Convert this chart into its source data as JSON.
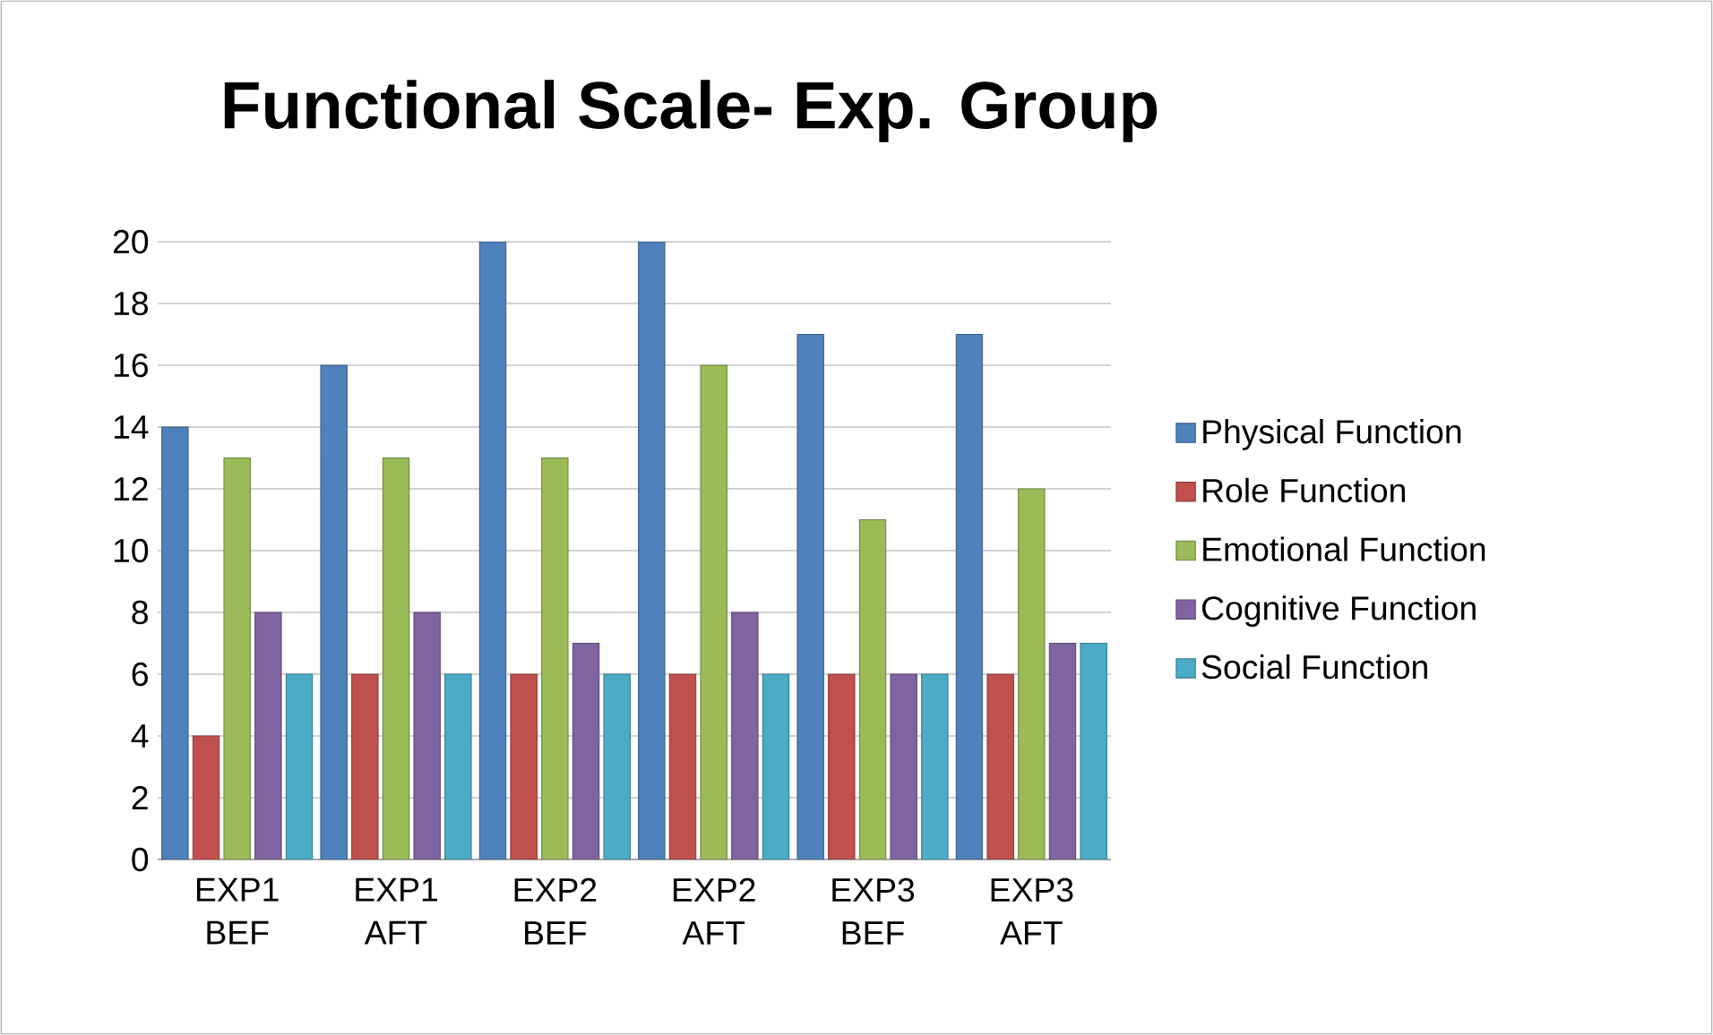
{
  "chart_data": {
    "type": "bar",
    "title": "Functional Scale- Exp. Group",
    "categories": [
      "EXP1 BEF",
      "EXP1 AFT",
      "EXP2 BEF",
      "EXP2 AFT",
      "EXP3 BEF",
      "EXP3 AFT"
    ],
    "series": [
      {
        "name": "Physical Function",
        "color": "#4f81bd",
        "values": [
          14,
          16,
          20,
          20,
          17,
          17
        ]
      },
      {
        "name": "Role Function",
        "color": "#c0504d",
        "values": [
          4,
          6,
          6,
          6,
          6,
          6
        ]
      },
      {
        "name": "Emotional Function",
        "color": "#9bbb59",
        "values": [
          13,
          13,
          13,
          16,
          11,
          12
        ]
      },
      {
        "name": "Cognitive Function",
        "color": "#8064a2",
        "values": [
          8,
          8,
          7,
          8,
          6,
          7
        ]
      },
      {
        "name": "Social Function",
        "color": "#4bacc6",
        "values": [
          6,
          6,
          6,
          6,
          6,
          7
        ]
      }
    ],
    "ylim": [
      0,
      20
    ],
    "yticks": [
      0,
      2,
      4,
      6,
      8,
      10,
      12,
      14,
      16,
      18,
      20
    ],
    "grid": "y",
    "legend": "right"
  }
}
